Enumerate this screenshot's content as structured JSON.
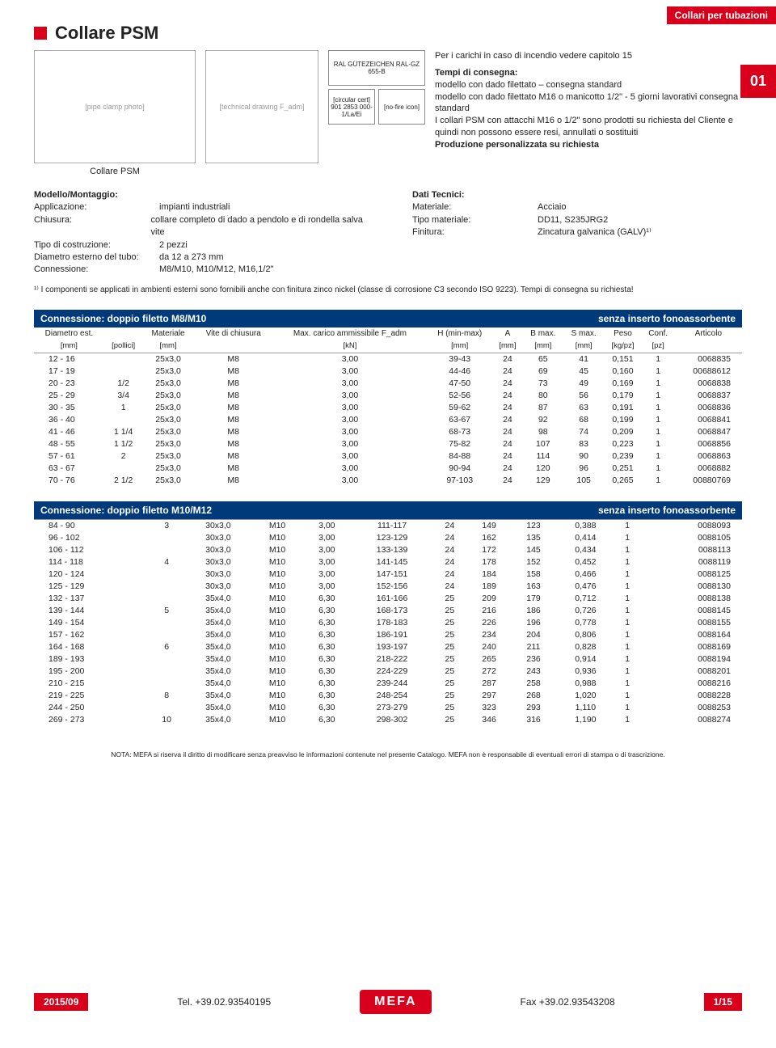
{
  "header": {
    "category_tab": "Collari per tubazioni",
    "chapter_num": "01",
    "red_square": true,
    "page_title": "Collare PSM",
    "img1_caption": "Collare PSM",
    "img1_placeholder": "[pipe clamp photo]",
    "img2_placeholder": "[technical drawing\nF_adm]",
    "badges": [
      "RAL\nGÜTEZEICHEN\nRAL-GZ 655-B",
      "[circular cert]\n901 2853 000-1/La/Ei",
      "[no-fire icon]"
    ],
    "fire_note": "Per i carichi in caso di incendio vedere capitolo 15",
    "delivery_title": "Tempi di consegna:",
    "delivery_lines": [
      "modello con dado filettato – consegna standard",
      "modello con dado filettato M16 o manicotto 1/2\" - 5 giorni lavorativi consegna standard",
      "I collari PSM con attacchi M16 o 1/2\" sono prodotti su richiesta del Cliente e quindi non possono essere resi, annullati o sostituiti",
      "Produzione personalizzata su richiesta"
    ]
  },
  "specs": {
    "left_title": "Modello/Montaggio:",
    "left": [
      {
        "k": "Applicazione:",
        "v": "impianti industriali"
      },
      {
        "k": "Chiusura:",
        "v": "collare completo di dado a pendolo e di rondella salva vite"
      },
      {
        "k": "Tipo di costruzione:",
        "v": "2 pezzi"
      },
      {
        "k": "Diametro esterno del tubo:",
        "v": "da 12 a 273 mm"
      },
      {
        "k": "Connessione:",
        "v": "M8/M10, M10/M12, M16,1/2\""
      }
    ],
    "right_title": "Dati Tecnici:",
    "right": [
      {
        "k": "Materiale:",
        "v": "Acciaio"
      },
      {
        "k": "Tipo materiale:",
        "v": "DD11, S235JRG2"
      },
      {
        "k": "Finitura:",
        "v": "Zincatura galvanica (GALV)¹⁾"
      }
    ],
    "footnote": "¹⁾ I componenti se applicati in ambienti esterni sono fornibili anche con finitura zinco nickel (classe di corrosione C3 secondo ISO 9223). Tempi di consegna su richiesta!"
  },
  "table1": {
    "title_left": "Connessione: doppio filetto M8/M10",
    "title_right": "senza inserto fonoassorbente",
    "columns_top": [
      "Diametro est.",
      "",
      "Materiale",
      "Vite di chiusura",
      "Max. carico ammissibile F_adm",
      "H (min-max)",
      "A",
      "B max.",
      "S max.",
      "Peso",
      "Conf.",
      "Articolo"
    ],
    "columns_units": [
      "[mm]",
      "[pollici]",
      "[mm]",
      "",
      "[kN]",
      "[mm]",
      "[mm]",
      "[mm]",
      "[mm]",
      "[kg/pz]",
      "[pz]",
      ""
    ],
    "rows": [
      [
        "12 - 16",
        "",
        "25x3,0",
        "M8",
        "3,00",
        "39-43",
        "24",
        "65",
        "41",
        "0,151",
        "1",
        "0068835"
      ],
      [
        "17 - 19",
        "",
        "25x3,0",
        "M8",
        "3,00",
        "44-46",
        "24",
        "69",
        "45",
        "0,160",
        "1",
        "00688612"
      ],
      [
        "20 - 23",
        "1/2",
        "25x3,0",
        "M8",
        "3,00",
        "47-50",
        "24",
        "73",
        "49",
        "0,169",
        "1",
        "0068838"
      ],
      [
        "25 - 29",
        "3/4",
        "25x3,0",
        "M8",
        "3,00",
        "52-56",
        "24",
        "80",
        "56",
        "0,179",
        "1",
        "0068837"
      ],
      [
        "30 - 35",
        "1",
        "25x3,0",
        "M8",
        "3,00",
        "59-62",
        "24",
        "87",
        "63",
        "0,191",
        "1",
        "0068836"
      ],
      [
        "36 - 40",
        "",
        "25x3,0",
        "M8",
        "3,00",
        "63-67",
        "24",
        "92",
        "68",
        "0,199",
        "1",
        "0068841"
      ],
      [
        "41 - 46",
        "1 1/4",
        "25x3,0",
        "M8",
        "3,00",
        "68-73",
        "24",
        "98",
        "74",
        "0,209",
        "1",
        "0068847"
      ],
      [
        "48 - 55",
        "1 1/2",
        "25x3,0",
        "M8",
        "3,00",
        "75-82",
        "24",
        "107",
        "83",
        "0,223",
        "1",
        "0068856"
      ],
      [
        "57 - 61",
        "2",
        "25x3,0",
        "M8",
        "3,00",
        "84-88",
        "24",
        "114",
        "90",
        "0,239",
        "1",
        "0068863"
      ],
      [
        "63 - 67",
        "",
        "25x3,0",
        "M8",
        "3,00",
        "90-94",
        "24",
        "120",
        "96",
        "0,251",
        "1",
        "0068882"
      ],
      [
        "70 - 76",
        "2 1/2",
        "25x3,0",
        "M8",
        "3,00",
        "97-103",
        "24",
        "129",
        "105",
        "0,265",
        "1",
        "00880769"
      ]
    ]
  },
  "table2": {
    "title_left": "Connessione: doppio filetto M10/M12",
    "title_right": "senza inserto fonoassorbente",
    "rows": [
      [
        "84 - 90",
        "3",
        "30x3,0",
        "M10",
        "3,00",
        "111-117",
        "24",
        "149",
        "123",
        "0,388",
        "1",
        "0088093"
      ],
      [
        "96 - 102",
        "",
        "30x3,0",
        "M10",
        "3,00",
        "123-129",
        "24",
        "162",
        "135",
        "0,414",
        "1",
        "0088105"
      ],
      [
        "106 - 112",
        "",
        "30x3,0",
        "M10",
        "3,00",
        "133-139",
        "24",
        "172",
        "145",
        "0,434",
        "1",
        "0088113"
      ],
      [
        "114 - 118",
        "4",
        "30x3,0",
        "M10",
        "3,00",
        "141-145",
        "24",
        "178",
        "152",
        "0,452",
        "1",
        "0088119"
      ],
      [
        "120 - 124",
        "",
        "30x3,0",
        "M10",
        "3,00",
        "147-151",
        "24",
        "184",
        "158",
        "0,466",
        "1",
        "0088125"
      ],
      [
        "125 - 129",
        "",
        "30x3,0",
        "M10",
        "3,00",
        "152-156",
        "24",
        "189",
        "163",
        "0,476",
        "1",
        "0088130"
      ],
      [
        "132 - 137",
        "",
        "35x4,0",
        "M10",
        "6,30",
        "161-166",
        "25",
        "209",
        "179",
        "0,712",
        "1",
        "0088138"
      ],
      [
        "139 - 144",
        "5",
        "35x4,0",
        "M10",
        "6,30",
        "168-173",
        "25",
        "216",
        "186",
        "0,726",
        "1",
        "0088145"
      ],
      [
        "149 - 154",
        "",
        "35x4,0",
        "M10",
        "6,30",
        "178-183",
        "25",
        "226",
        "196",
        "0,778",
        "1",
        "0088155"
      ],
      [
        "157 - 162",
        "",
        "35x4,0",
        "M10",
        "6,30",
        "186-191",
        "25",
        "234",
        "204",
        "0,806",
        "1",
        "0088164"
      ],
      [
        "164 - 168",
        "6",
        "35x4,0",
        "M10",
        "6,30",
        "193-197",
        "25",
        "240",
        "211",
        "0,828",
        "1",
        "0088169"
      ],
      [
        "189 - 193",
        "",
        "35x4,0",
        "M10",
        "6,30",
        "218-222",
        "25",
        "265",
        "236",
        "0,914",
        "1",
        "0088194"
      ],
      [
        "195 - 200",
        "",
        "35x4,0",
        "M10",
        "6,30",
        "224-229",
        "25",
        "272",
        "243",
        "0,936",
        "1",
        "0088201"
      ],
      [
        "210 - 215",
        "",
        "35x4,0",
        "M10",
        "6,30",
        "239-244",
        "25",
        "287",
        "258",
        "0,988",
        "1",
        "0088216"
      ],
      [
        "219 - 225",
        "8",
        "35x4,0",
        "M10",
        "6,30",
        "248-254",
        "25",
        "297",
        "268",
        "1,020",
        "1",
        "0088228"
      ],
      [
        "244 - 250",
        "",
        "35x4,0",
        "M10",
        "6,30",
        "273-279",
        "25",
        "323",
        "293",
        "1,110",
        "1",
        "0088253"
      ],
      [
        "269 - 273",
        "10",
        "35x4,0",
        "M10",
        "6,30",
        "298-302",
        "25",
        "346",
        "316",
        "1,190",
        "1",
        "0088274"
      ]
    ]
  },
  "bottom_note": "NOTA: MEFA si riserva il diritto di modificare senza preavviso le informazioni contenute nel presente Catalogo. MEFA non è responsabile di eventuali errori di stampa o di trascrizione.",
  "footer": {
    "date": "2015/09",
    "tel": "Tel. +39.02.93540195",
    "logo": "MEFA",
    "fax": "Fax +39.02.93543208",
    "page": "1/15"
  }
}
